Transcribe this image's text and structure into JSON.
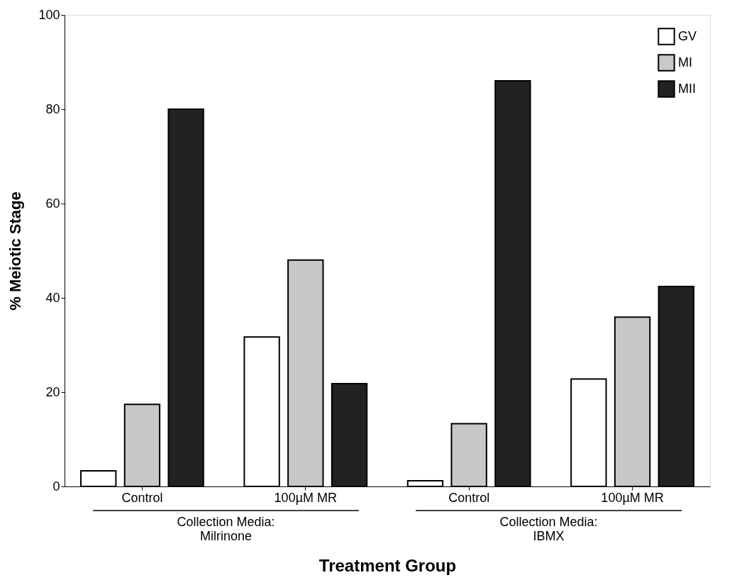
{
  "chart_data": {
    "type": "bar",
    "xlabel": "Treatment Group",
    "ylabel": "% Meiotic Stage",
    "categories": [
      "Control",
      "100µM MR",
      "Control",
      "100µM MR"
    ],
    "series": [
      {
        "name": "GV",
        "color": "#ffffff",
        "values": [
          3.3,
          31.7,
          1.2,
          22.8
        ]
      },
      {
        "name": "MI",
        "color": "#c8c8c8",
        "values": [
          17.4,
          48,
          13.3,
          35.9
        ]
      },
      {
        "name": "MII",
        "color": "#222222",
        "values": [
          80,
          21.8,
          86,
          42.4
        ]
      }
    ],
    "ylim": [
      0,
      100
    ],
    "yticks": [
      0,
      20,
      40,
      60,
      80,
      100
    ],
    "grid": false,
    "legend": "top right",
    "annotations": [
      "Collection Media:\nMilrinone",
      "Collection Media:\nIBMX"
    ]
  }
}
